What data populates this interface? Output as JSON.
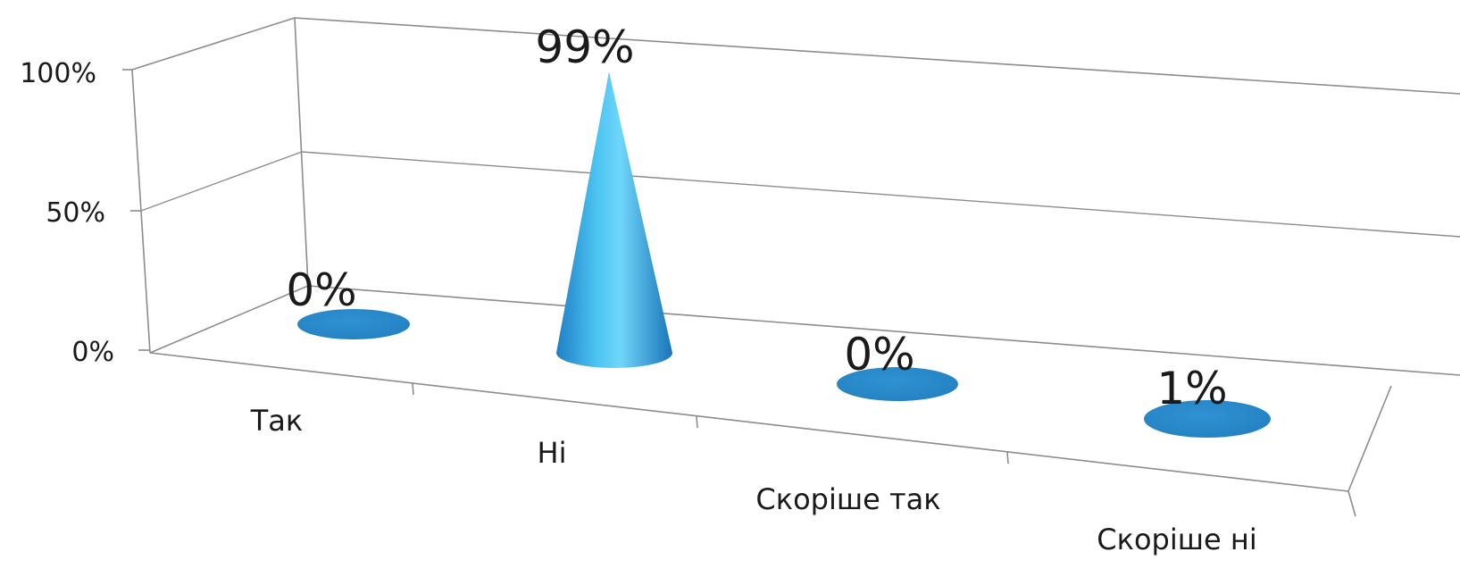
{
  "chart_data": {
    "type": "bar",
    "shape": "cone-3d",
    "categories": [
      "Так",
      "Ні",
      "Скоріше так",
      "Скоріше ні"
    ],
    "values": [
      0,
      99,
      0,
      1
    ],
    "value_labels": [
      "0%",
      "99%",
      "0%",
      "1%"
    ],
    "y_ticks": [
      "0%",
      "50%",
      "100%"
    ],
    "ylim": [
      0,
      100
    ],
    "unit": "%",
    "grid": true,
    "legend": "none",
    "series_color": "#2a8fd0"
  }
}
